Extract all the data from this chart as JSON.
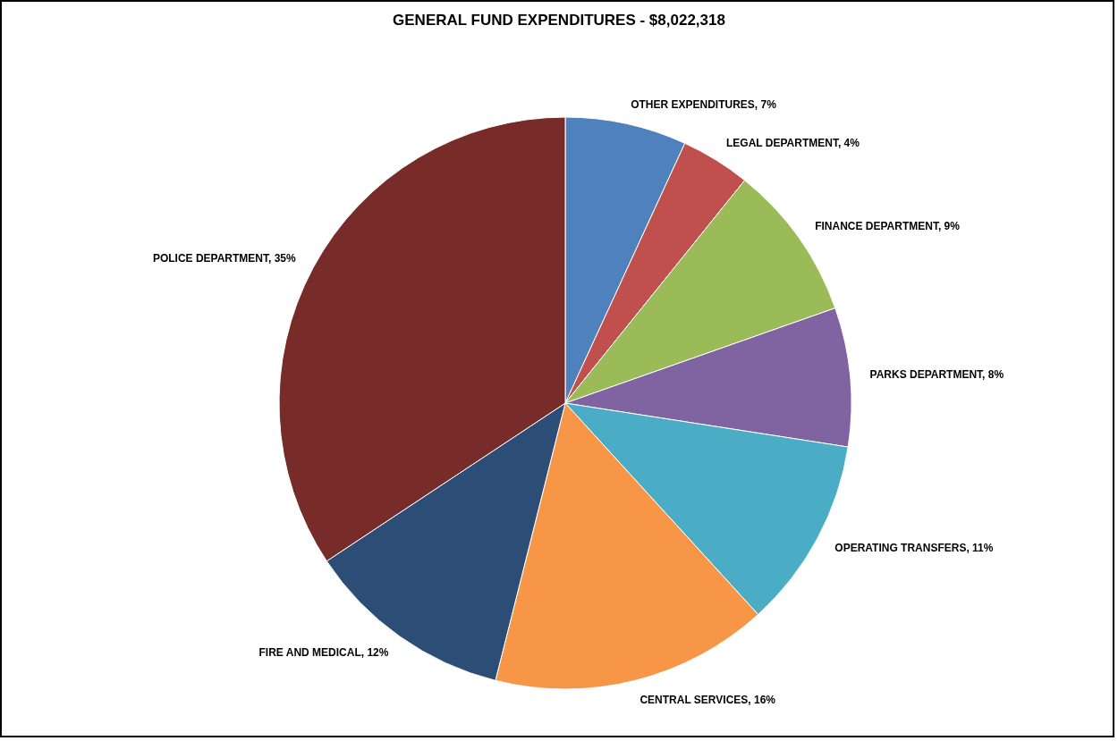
{
  "chart_data": {
    "type": "pie",
    "title": "GENERAL FUND EXPENDITURES - $8,022,318",
    "categories": [
      "OTHER EXPENDITURES",
      "LEGAL DEPARTMENT",
      "FINANCE DEPARTMENT",
      "PARKS DEPARTMENT",
      "OPERATING TRANSFERS",
      "CENTRAL SERVICES",
      "FIRE AND MEDICAL",
      "POLICE DEPARTMENT"
    ],
    "values": [
      7,
      4,
      9,
      8,
      11,
      16,
      12,
      35
    ],
    "value_labels": [
      "7%",
      "4%",
      "9%",
      "8%",
      "11%",
      "16%",
      "12%",
      "35%"
    ],
    "colors": [
      "#4f81bd",
      "#c0504d",
      "#9bbb59",
      "#8064a2",
      "#4bacc6",
      "#f79646",
      "#2c4d75",
      "#772c2a"
    ]
  }
}
